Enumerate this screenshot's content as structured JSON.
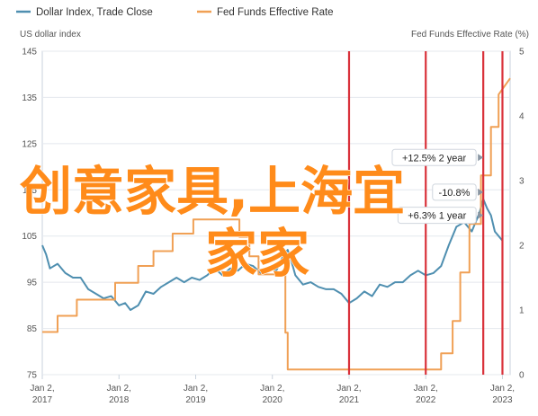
{
  "chart_data": {
    "type": "line",
    "legend": {
      "placement": "top-left",
      "entries": [
        {
          "name": "Dollar Index, Trade Close",
          "color": "#4f8fb0"
        },
        {
          "name": "Fed Funds Effective Rate",
          "color": "#f0a055"
        }
      ]
    },
    "y_left": {
      "title": "US dollar index",
      "range": [
        75,
        145
      ],
      "ticks": [
        "75",
        "85",
        "95",
        "105",
        "115",
        "125",
        "135",
        "145"
      ]
    },
    "y_right": {
      "title": "Fed Funds Effective Rate (%)",
      "range": [
        0,
        5
      ],
      "ticks": [
        "0",
        "1",
        "2",
        "3",
        "4",
        "5"
      ]
    },
    "x_axis": {
      "range": [
        2017.0,
        2023.1
      ],
      "ticks": [
        {
          "x": 2017,
          "line1": "Jan 2,",
          "line2": "2017"
        },
        {
          "x": 2018,
          "line1": "Jan 2,",
          "line2": "2018"
        },
        {
          "x": 2019,
          "line1": "Jan 2,",
          "line2": "2019"
        },
        {
          "x": 2020,
          "line1": "Jan 2,",
          "line2": "2020"
        },
        {
          "x": 2021,
          "line1": "Jan 2,",
          "line2": "2021"
        },
        {
          "x": 2022,
          "line1": "Jan 2,",
          "line2": "2022"
        },
        {
          "x": 2023,
          "line1": "Jan 2,",
          "line2": "2023"
        }
      ]
    },
    "vertical_markers": [
      2021.0,
      2022.0,
      2022.75,
      2023.0
    ],
    "marker_color": "#d9313a",
    "annotations": [
      {
        "label": "-10.8%",
        "x": 2022.75,
        "y": 114.5,
        "marker": "triangle-right"
      },
      {
        "label": "+6.3% 1 year",
        "x": 2022.75,
        "y": 109.5,
        "marker": "triangle-right"
      },
      {
        "label": "+12.5% 2 year",
        "x": 2022.75,
        "y": 122,
        "marker": "triangle-right"
      }
    ],
    "series": [
      {
        "name": "Dollar Index, Trade Close",
        "axis": "left",
        "color": "#4f8fb0",
        "x": [
          2017.0,
          2017.05,
          2017.1,
          2017.2,
          2017.3,
          2017.4,
          2017.5,
          2017.6,
          2017.7,
          2017.8,
          2017.9,
          2018.0,
          2018.08,
          2018.15,
          2018.25,
          2018.35,
          2018.45,
          2018.55,
          2018.65,
          2018.75,
          2018.85,
          2018.95,
          2019.05,
          2019.15,
          2019.25,
          2019.35,
          2019.45,
          2019.55,
          2019.65,
          2019.75,
          2019.85,
          2019.95,
          2020.05,
          2020.15,
          2020.2,
          2020.25,
          2020.3,
          2020.4,
          2020.5,
          2020.6,
          2020.7,
          2020.8,
          2020.9,
          2021.0,
          2021.1,
          2021.2,
          2021.3,
          2021.4,
          2021.5,
          2021.6,
          2021.7,
          2021.8,
          2021.9,
          2022.0,
          2022.1,
          2022.2,
          2022.3,
          2022.4,
          2022.5,
          2022.6,
          2022.7,
          2022.75,
          2022.8,
          2022.85,
          2022.9,
          2023.0
        ],
        "y": [
          103,
          101,
          98,
          99,
          97,
          96,
          96,
          93.5,
          92.5,
          91.5,
          92,
          90,
          90.5,
          89,
          90,
          93,
          92.5,
          94,
          95,
          96,
          95,
          96,
          95.5,
          96.5,
          98,
          96.5,
          98,
          97.5,
          99,
          98.5,
          97,
          98,
          97.5,
          101,
          102,
          99.5,
          96.5,
          94.5,
          95,
          94,
          93.5,
          93.5,
          92.5,
          90.5,
          91.5,
          93,
          92,
          94.5,
          94,
          95,
          95,
          96.5,
          97.5,
          96.5,
          97,
          98.5,
          103,
          107,
          108,
          106,
          110,
          113,
          111,
          109.5,
          106,
          104
        ]
      },
      {
        "name": "Fed Funds Effective Rate",
        "axis": "right",
        "color": "#f0a055",
        "x": [
          2017.0,
          2017.2,
          2017.2,
          2017.45,
          2017.45,
          2017.95,
          2017.95,
          2018.25,
          2018.25,
          2018.45,
          2018.45,
          2018.7,
          2018.7,
          2018.97,
          2018.97,
          2019.57,
          2019.57,
          2019.7,
          2019.7,
          2019.82,
          2019.82,
          2020.17,
          2020.17,
          2020.2,
          2020.2,
          2022.2,
          2022.2,
          2022.35,
          2022.35,
          2022.45,
          2022.45,
          2022.57,
          2022.57,
          2022.72,
          2022.72,
          2022.85,
          2022.85,
          2022.95,
          2022.95,
          2023.1
        ],
        "y": [
          0.66,
          0.66,
          0.91,
          0.91,
          1.16,
          1.16,
          1.42,
          1.42,
          1.68,
          1.68,
          1.91,
          1.91,
          2.18,
          2.18,
          2.4,
          2.4,
          2.13,
          2.13,
          1.83,
          1.83,
          1.55,
          1.55,
          0.65,
          0.65,
          0.08,
          0.08,
          0.33,
          0.33,
          0.83,
          0.83,
          1.58,
          1.58,
          2.33,
          2.33,
          3.08,
          3.08,
          3.83,
          3.83,
          4.33,
          4.58
        ]
      }
    ]
  },
  "overlay_text": {
    "line1": "创意家具,上海宜",
    "line2": "家家"
  }
}
